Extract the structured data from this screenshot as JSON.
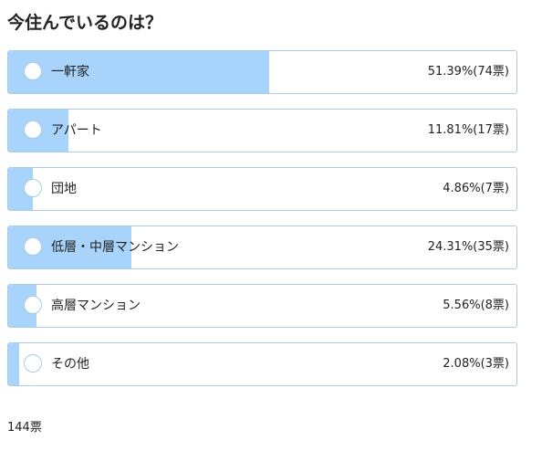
{
  "poll": {
    "title": "今住んでいるのは？",
    "options": [
      {
        "label": "一軒家",
        "percent": 51.39,
        "result": "51.39%(74票)"
      },
      {
        "label": "アパート",
        "percent": 11.81,
        "result": "11.81%(17票)"
      },
      {
        "label": "団地",
        "percent": 4.86,
        "result": "4.86%(7票)"
      },
      {
        "label": "低層・中層マンション",
        "percent": 24.31,
        "result": "24.31%(35票)"
      },
      {
        "label": "高層マンション",
        "percent": 5.56,
        "result": "5.56%(8票)"
      },
      {
        "label": "その他",
        "percent": 2.08,
        "result": "2.08%(3票)"
      }
    ],
    "total": "144票"
  },
  "colors": {
    "bar_fill": "#a8d3fb",
    "border": "#a9cbe6"
  }
}
